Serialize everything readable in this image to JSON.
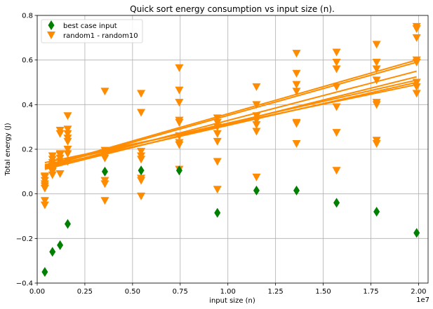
{
  "chart_data": {
    "type": "scatter",
    "title": "Quick sort energy consumption vs input size (n).",
    "xlabel": "input size (n)",
    "ylabel": "Total energy (J)",
    "x_offset_label": "1e7",
    "xlim": [
      0,
      20500000
    ],
    "ylim": [
      -0.4,
      0.8
    ],
    "x_ticks": [
      0,
      2500000,
      5000000,
      7500000,
      10000000,
      12500000,
      15000000,
      17500000,
      20000000
    ],
    "x_tick_labels": [
      "0.00",
      "0.25",
      "0.50",
      "0.75",
      "1.00",
      "1.25",
      "1.50",
      "1.75",
      "2.00"
    ],
    "y_ticks": [
      -0.4,
      -0.2,
      0.0,
      0.2,
      0.4,
      0.6,
      0.8
    ],
    "y_tick_labels": [
      "−0.4",
      "−0.2",
      "0.0",
      "0.2",
      "0.4",
      "0.6",
      "0.8"
    ],
    "grid": true,
    "legend_position": "top-left",
    "legend": [
      {
        "label": "best case input",
        "marker": "diamond",
        "color": "#008000"
      },
      {
        "label": "random1 - random10",
        "marker": "triangle-down",
        "color": "#ff8c00"
      }
    ],
    "series": [
      {
        "name": "best case input",
        "color": "#008000",
        "marker": "diamond",
        "x": [
          400000,
          800000,
          1200000,
          1600000,
          3550000,
          5450000,
          7450000,
          9450000,
          11500000,
          13600000,
          15700000,
          17800000,
          19900000
        ],
        "y": [
          -0.35,
          -0.26,
          -0.23,
          -0.135,
          0.1,
          0.105,
          0.105,
          -0.085,
          0.015,
          0.015,
          -0.04,
          -0.08,
          -0.175
        ]
      },
      {
        "name": "random1 - random10",
        "color": "#ff8c00",
        "marker": "triangle-down",
        "x": [
          400000,
          400000,
          400000,
          400000,
          400000,
          400000,
          400000,
          400000,
          800000,
          800000,
          800000,
          800000,
          800000,
          800000,
          800000,
          800000,
          1200000,
          1200000,
          1200000,
          1200000,
          1200000,
          1200000,
          1200000,
          1600000,
          1600000,
          1600000,
          1600000,
          1600000,
          1600000,
          1600000,
          1600000,
          3550000,
          3550000,
          3550000,
          3550000,
          3550000,
          3550000,
          3550000,
          3550000,
          5450000,
          5450000,
          5450000,
          5450000,
          5450000,
          5450000,
          5450000,
          5450000,
          7450000,
          7450000,
          7450000,
          7450000,
          7450000,
          7450000,
          7450000,
          7450000,
          7450000,
          9450000,
          9450000,
          9450000,
          9450000,
          9450000,
          9450000,
          9450000,
          11500000,
          11500000,
          11500000,
          11500000,
          11500000,
          11500000,
          11500000,
          13600000,
          13600000,
          13600000,
          13600000,
          13600000,
          13600000,
          13600000,
          15700000,
          15700000,
          15700000,
          15700000,
          15700000,
          15700000,
          15700000,
          17800000,
          17800000,
          17800000,
          17800000,
          17800000,
          17800000,
          17800000,
          17800000,
          19900000,
          19900000,
          19900000,
          19900000,
          19900000,
          19900000,
          19900000,
          19900000
        ],
        "y": [
          0.075,
          0.06,
          0.045,
          0.035,
          0.025,
          -0.03,
          -0.05,
          0.08,
          0.17,
          0.155,
          0.14,
          0.125,
          0.115,
          0.105,
          0.1,
          0.085,
          0.285,
          0.27,
          0.18,
          0.175,
          0.16,
          0.145,
          0.09,
          0.35,
          0.29,
          0.27,
          0.25,
          0.235,
          0.2,
          0.18,
          0.145,
          0.46,
          0.195,
          0.185,
          0.17,
          0.16,
          0.06,
          0.045,
          -0.03,
          0.45,
          0.365,
          0.19,
          0.17,
          0.155,
          0.07,
          0.06,
          -0.01,
          0.565,
          0.465,
          0.41,
          0.33,
          0.32,
          0.26,
          0.23,
          0.22,
          0.11,
          0.34,
          0.32,
          0.3,
          0.27,
          0.235,
          0.145,
          0.02,
          0.48,
          0.4,
          0.35,
          0.33,
          0.31,
          0.28,
          0.075,
          0.63,
          0.54,
          0.49,
          0.46,
          0.32,
          0.315,
          0.225,
          0.635,
          0.59,
          0.56,
          0.48,
          0.39,
          0.275,
          0.105,
          0.67,
          0.59,
          0.56,
          0.51,
          0.41,
          0.4,
          0.24,
          0.225,
          0.75,
          0.74,
          0.7,
          0.6,
          0.59,
          0.5,
          0.48,
          0.45
        ]
      }
    ],
    "trend_lines": [
      {
        "x": [
          400000,
          19900000
        ],
        "y": [
          0.12,
          0.59
        ],
        "color": "#ff8c00"
      },
      {
        "x": [
          400000,
          19900000
        ],
        "y": [
          0.125,
          0.6
        ],
        "color": "#ff8c00"
      },
      {
        "x": [
          400000,
          19900000
        ],
        "y": [
          0.115,
          0.55
        ],
        "color": "#ff8c00"
      },
      {
        "x": [
          400000,
          19900000
        ],
        "y": [
          0.13,
          0.51
        ],
        "color": "#ff8c00"
      },
      {
        "x": [
          400000,
          19900000
        ],
        "y": [
          0.11,
          0.525
        ],
        "color": "#ff8c00"
      },
      {
        "x": [
          400000,
          19900000
        ],
        "y": [
          0.14,
          0.49
        ],
        "color": "#ff8c00"
      },
      {
        "x": [
          400000,
          19900000
        ],
        "y": [
          0.12,
          0.5
        ],
        "color": "#ff8c00"
      }
    ]
  }
}
